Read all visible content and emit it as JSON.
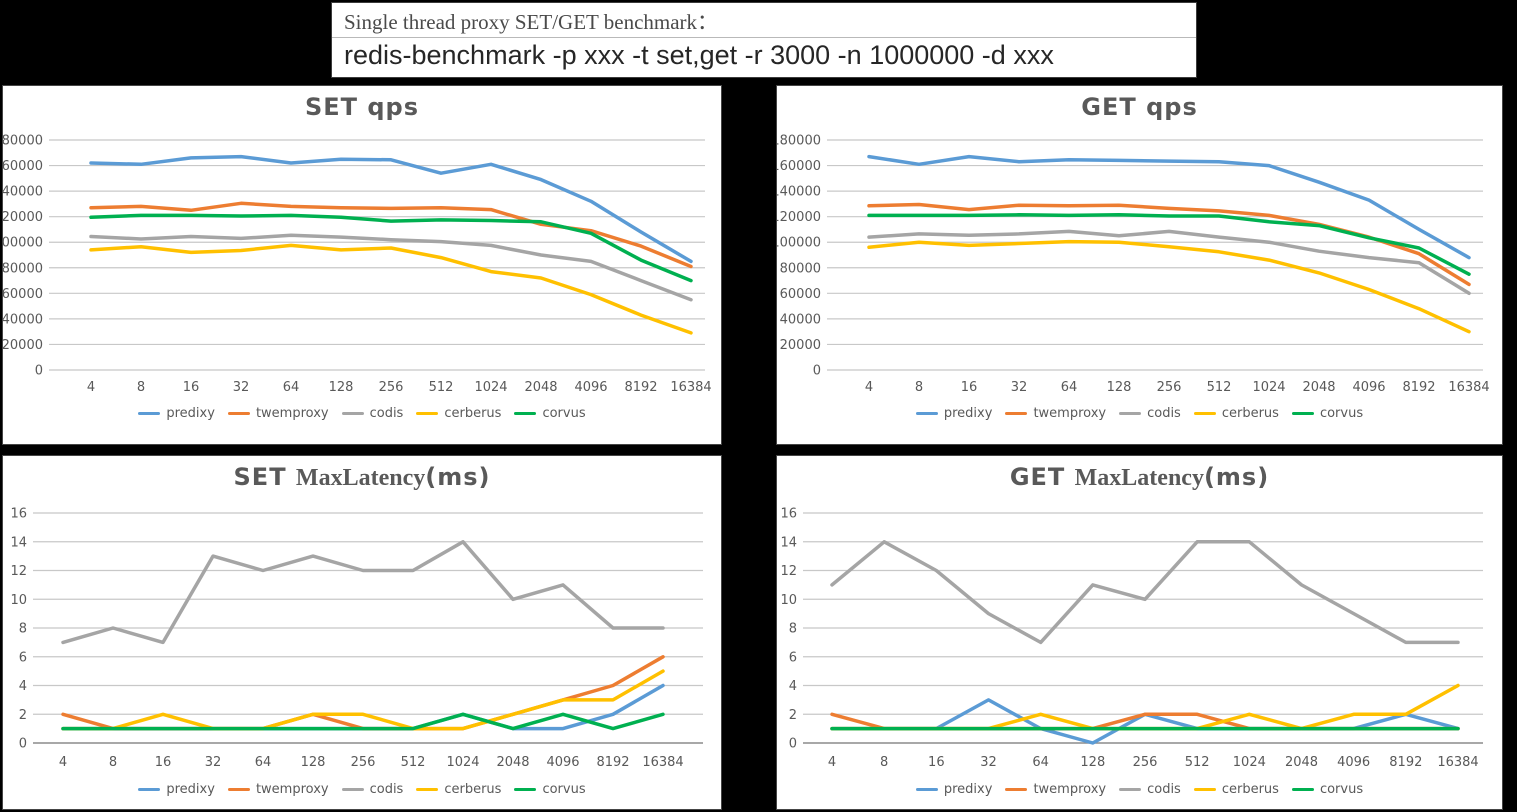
{
  "title_box": {
    "line1": "Single thread proxy SET/GET benchmark：",
    "line2": "redis-benchmark -p xxx -t set,get -r 3000 -n 1000000 -d xxx"
  },
  "colors": {
    "predixy": "#5B9BD5",
    "twemproxy": "#ED7D31",
    "codis": "#A5A5A5",
    "cerberus": "#FFC000",
    "corvus": "#00B050"
  },
  "chart_data": [
    {
      "id": "set-qps",
      "type": "line",
      "title_parts": [
        {
          "text": "SET  qps",
          "serif": false
        }
      ],
      "categories": [
        "4",
        "8",
        "16",
        "32",
        "64",
        "128",
        "256",
        "512",
        "1024",
        "2048",
        "4096",
        "8192",
        "16384"
      ],
      "ylim": [
        0,
        180000
      ],
      "ystep": 20000,
      "grid": true,
      "legend_position": "bottom",
      "series": [
        {
          "name": "predixy",
          "color": "#5B9BD5",
          "values": [
            162000,
            161000,
            166000,
            167000,
            162000,
            165000,
            164500,
            154000,
            161000,
            149000,
            132000,
            108000,
            85000
          ]
        },
        {
          "name": "twemproxy",
          "color": "#ED7D31",
          "values": [
            127000,
            128000,
            125000,
            130500,
            128000,
            127000,
            126500,
            127000,
            125500,
            114000,
            109000,
            97000,
            81000
          ]
        },
        {
          "name": "codis",
          "color": "#A5A5A5",
          "values": [
            104500,
            102500,
            104500,
            103000,
            105500,
            104000,
            102000,
            100500,
            97500,
            90000,
            85000,
            70000,
            55000
          ]
        },
        {
          "name": "cerberus",
          "color": "#FFC000",
          "values": [
            94000,
            96500,
            92000,
            93500,
            97500,
            94000,
            95500,
            88000,
            77000,
            72000,
            59000,
            43000,
            29000
          ]
        },
        {
          "name": "corvus",
          "color": "#00B050",
          "values": [
            119500,
            121000,
            121000,
            120500,
            121000,
            119500,
            116500,
            117500,
            117000,
            116000,
            107000,
            86000,
            70000
          ]
        }
      ]
    },
    {
      "id": "get-qps",
      "type": "line",
      "title_parts": [
        {
          "text": "GET  qps",
          "serif": false
        }
      ],
      "categories": [
        "4",
        "8",
        "16",
        "32",
        "64",
        "128",
        "256",
        "512",
        "1024",
        "2048",
        "4096",
        "8192",
        "16384"
      ],
      "ylim": [
        0,
        180000
      ],
      "ystep": 20000,
      "grid": true,
      "legend_position": "bottom",
      "series": [
        {
          "name": "predixy",
          "color": "#5B9BD5",
          "values": [
            167000,
            161000,
            167000,
            163000,
            164500,
            164000,
            163500,
            163000,
            160000,
            147000,
            133000,
            110000,
            88000
          ]
        },
        {
          "name": "twemproxy",
          "color": "#ED7D31",
          "values": [
            128500,
            129500,
            125500,
            129000,
            128500,
            129000,
            126500,
            124500,
            121000,
            114000,
            104000,
            91000,
            67000
          ]
        },
        {
          "name": "codis",
          "color": "#A5A5A5",
          "values": [
            104000,
            106500,
            105500,
            106500,
            108500,
            105000,
            108500,
            104000,
            100000,
            93000,
            88000,
            84000,
            60000
          ]
        },
        {
          "name": "cerberus",
          "color": "#FFC000",
          "values": [
            96000,
            100000,
            97500,
            99000,
            100500,
            100000,
            96500,
            92500,
            86000,
            76000,
            63000,
            48000,
            30000
          ]
        },
        {
          "name": "corvus",
          "color": "#00B050",
          "values": [
            121000,
            121000,
            121000,
            121500,
            121000,
            121500,
            120500,
            120500,
            116000,
            113000,
            103500,
            95500,
            75000
          ]
        }
      ]
    },
    {
      "id": "set-latency",
      "type": "line",
      "title_parts": [
        {
          "text": "SET ",
          "serif": false
        },
        {
          "text": "MaxLatency",
          "serif": true
        },
        {
          "text": "(ms)",
          "serif": false
        }
      ],
      "categories": [
        "4",
        "8",
        "16",
        "32",
        "64",
        "128",
        "256",
        "512",
        "1024",
        "2048",
        "4096",
        "8192",
        "16384"
      ],
      "ylim": [
        0,
        16
      ],
      "ystep": 2,
      "grid": true,
      "legend_position": "bottom",
      "series": [
        {
          "name": "predixy",
          "color": "#5B9BD5",
          "values": [
            1,
            1,
            1,
            1,
            1,
            1,
            1,
            1,
            2,
            1,
            1,
            2,
            4
          ]
        },
        {
          "name": "twemproxy",
          "color": "#ED7D31",
          "values": [
            2,
            1,
            1,
            1,
            1,
            2,
            1,
            1,
            1,
            2,
            3,
            4,
            6
          ]
        },
        {
          "name": "codis",
          "color": "#A5A5A5",
          "values": [
            7,
            8,
            7,
            13,
            12,
            13,
            12,
            12,
            14,
            10,
            11,
            8,
            8
          ]
        },
        {
          "name": "cerberus",
          "color": "#FFC000",
          "values": [
            1,
            1,
            2,
            1,
            1,
            2,
            2,
            1,
            1,
            2,
            3,
            3,
            5
          ]
        },
        {
          "name": "corvus",
          "color": "#00B050",
          "values": [
            1,
            1,
            1,
            1,
            1,
            1,
            1,
            1,
            2,
            1,
            2,
            1,
            2
          ]
        }
      ]
    },
    {
      "id": "get-latency",
      "type": "line",
      "title_parts": [
        {
          "text": "GET ",
          "serif": false
        },
        {
          "text": "MaxLatency",
          "serif": true
        },
        {
          "text": "(ms)",
          "serif": false
        }
      ],
      "categories": [
        "4",
        "8",
        "16",
        "32",
        "64",
        "128",
        "256",
        "512",
        "1024",
        "2048",
        "4096",
        "8192",
        "16384"
      ],
      "ylim": [
        0,
        16
      ],
      "ystep": 2,
      "grid": true,
      "legend_position": "bottom",
      "series": [
        {
          "name": "predixy",
          "color": "#5B9BD5",
          "values": [
            1,
            1,
            1,
            3,
            1,
            0,
            2,
            1,
            1,
            1,
            1,
            2,
            1
          ]
        },
        {
          "name": "twemproxy",
          "color": "#ED7D31",
          "values": [
            2,
            1,
            1,
            1,
            1,
            1,
            2,
            2,
            1,
            1,
            1,
            1,
            1
          ]
        },
        {
          "name": "codis",
          "color": "#A5A5A5",
          "values": [
            11,
            14,
            12,
            9,
            7,
            11,
            10,
            14,
            14,
            11,
            9,
            7,
            7
          ]
        },
        {
          "name": "cerberus",
          "color": "#FFC000",
          "values": [
            1,
            1,
            1,
            1,
            2,
            1,
            1,
            1,
            2,
            1,
            2,
            2,
            4
          ]
        },
        {
          "name": "corvus",
          "color": "#00B050",
          "values": [
            1,
            1,
            1,
            1,
            1,
            1,
            1,
            1,
            1,
            1,
            1,
            1,
            1
          ]
        }
      ]
    }
  ]
}
